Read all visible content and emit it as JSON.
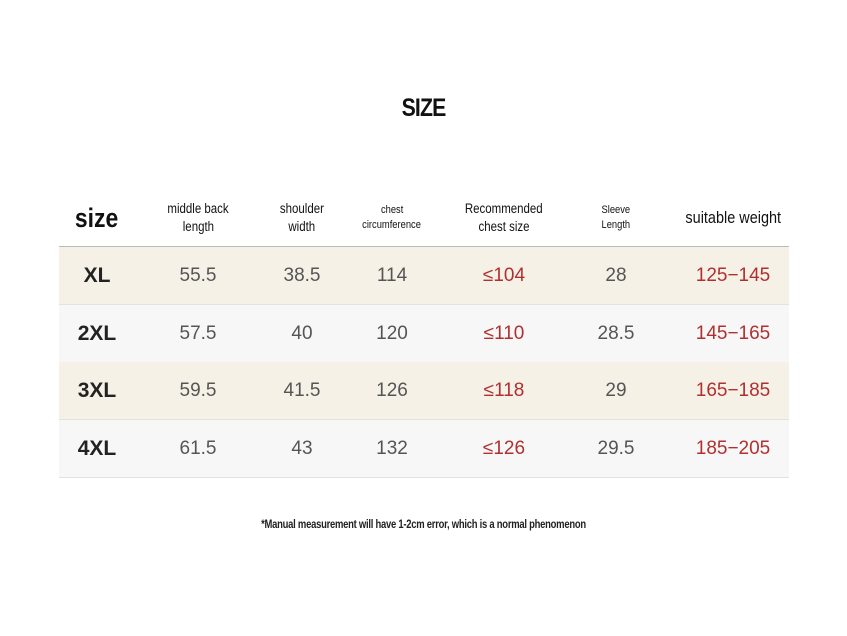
{
  "title": "SIZE",
  "table": {
    "header": [
      [
        "size"
      ],
      [
        "middle back",
        "length"
      ],
      [
        "shoulder",
        "width"
      ],
      [
        "chest",
        "circumference"
      ],
      [
        "Recommended",
        "chest size"
      ],
      [
        "Sleeve",
        "Length"
      ],
      [
        "suitable weight"
      ]
    ],
    "rows": [
      [
        "XL",
        "55.5",
        "38.5",
        "114",
        "≤104",
        "28",
        "125−145"
      ],
      [
        "2XL",
        "57.5",
        "40",
        "120",
        "≤110",
        "28.5",
        "145−165"
      ],
      [
        "3XL",
        "59.5",
        "41.5",
        "126",
        "≤118",
        "29",
        "165−185"
      ],
      [
        "4XL",
        "61.5",
        "43",
        "132",
        "≤126",
        "29.5",
        "185−205"
      ]
    ]
  },
  "footnote": "*Manual measurement will have 1-2cm error, which is a normal phenomenon"
}
